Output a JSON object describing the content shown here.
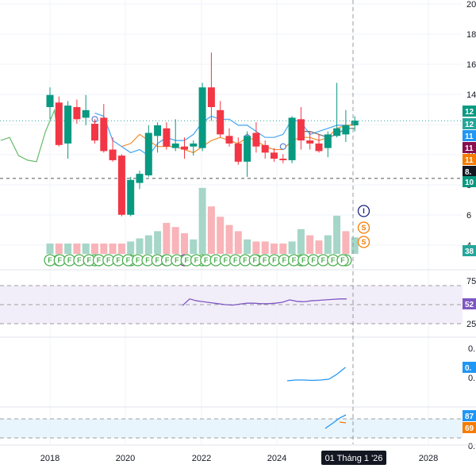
{
  "chart_data": {
    "type": "candlestick",
    "x_axis": {
      "ticks": [
        "2018",
        "2020",
        "2022",
        "2024",
        "2026",
        "2028"
      ],
      "crosshair_label": "01 Tháng 1 '26"
    },
    "price_axis": {
      "ticks": [
        "20",
        "18",
        "16",
        "14",
        "12",
        "10",
        "8",
        "6",
        "4"
      ],
      "ylim": [
        3,
        20
      ]
    },
    "price_badges": [
      {
        "text": "12",
        "color": "#089981"
      },
      {
        "text": "12",
        "color": "#26a69a"
      },
      {
        "text": "11",
        "color": "#2196f3"
      },
      {
        "text": "11",
        "color": "#880e4f"
      },
      {
        "text": "11",
        "color": "#f57c00"
      },
      {
        "text": "8.",
        "color": "#131722"
      },
      {
        "text": "10",
        "color": "#089981"
      },
      {
        "text": "38",
        "color": "#26a69a"
      }
    ],
    "candles": [
      {
        "o": 13.2,
        "h": 14.5,
        "l": 12.4,
        "c": 14.0
      },
      {
        "o": 13.5,
        "h": 13.9,
        "l": 10.6,
        "c": 10.7
      },
      {
        "o": 10.8,
        "h": 13.6,
        "l": 9.8,
        "c": 13.3
      },
      {
        "o": 13.2,
        "h": 13.7,
        "l": 12.1,
        "c": 12.4
      },
      {
        "o": 12.5,
        "h": 14.0,
        "l": 12.0,
        "c": 13.0
      },
      {
        "o": 12.1,
        "h": 12.4,
        "l": 10.8,
        "c": 11.0
      },
      {
        "o": 12.5,
        "h": 13.4,
        "l": 10.2,
        "c": 10.3
      },
      {
        "o": 10.4,
        "h": 11.2,
        "l": 9.6,
        "c": 9.7
      },
      {
        "o": 10.0,
        "h": 10.1,
        "l": 6.0,
        "c": 6.1
      },
      {
        "o": 6.1,
        "h": 8.6,
        "l": 6.0,
        "c": 8.4
      },
      {
        "o": 8.2,
        "h": 9.0,
        "l": 7.8,
        "c": 8.8
      },
      {
        "o": 8.7,
        "h": 12.0,
        "l": 8.6,
        "c": 11.5
      },
      {
        "o": 11.3,
        "h": 12.2,
        "l": 10.2,
        "c": 12.0
      },
      {
        "o": 11.8,
        "h": 12.2,
        "l": 10.4,
        "c": 10.6
      },
      {
        "o": 10.5,
        "h": 12.4,
        "l": 10.3,
        "c": 10.8
      },
      {
        "o": 10.6,
        "h": 11.2,
        "l": 9.8,
        "c": 10.4
      },
      {
        "o": 10.6,
        "h": 11.0,
        "l": 10.0,
        "c": 10.8
      },
      {
        "o": 10.5,
        "h": 14.8,
        "l": 10.3,
        "c": 14.5
      },
      {
        "o": 14.5,
        "h": 16.8,
        "l": 12.3,
        "c": 13.2
      },
      {
        "o": 13.0,
        "h": 13.6,
        "l": 11.2,
        "c": 11.4
      },
      {
        "o": 11.3,
        "h": 11.8,
        "l": 10.6,
        "c": 10.8
      },
      {
        "o": 10.8,
        "h": 11.2,
        "l": 9.4,
        "c": 9.6
      },
      {
        "o": 9.6,
        "h": 11.6,
        "l": 8.6,
        "c": 11.3
      },
      {
        "o": 11.5,
        "h": 12.2,
        "l": 10.2,
        "c": 10.6
      },
      {
        "o": 10.7,
        "h": 11.0,
        "l": 9.8,
        "c": 10.2
      },
      {
        "o": 10.2,
        "h": 10.5,
        "l": 9.6,
        "c": 9.8
      },
      {
        "o": 9.8,
        "h": 10.1,
        "l": 9.5,
        "c": 9.7
      },
      {
        "o": 9.7,
        "h": 12.6,
        "l": 9.5,
        "c": 12.5
      },
      {
        "o": 12.4,
        "h": 13.2,
        "l": 10.4,
        "c": 11.0
      },
      {
        "o": 11.0,
        "h": 11.6,
        "l": 10.4,
        "c": 10.8
      },
      {
        "o": 10.8,
        "h": 11.4,
        "l": 10.2,
        "c": 10.3
      },
      {
        "o": 10.5,
        "h": 11.6,
        "l": 9.9,
        "c": 11.4
      },
      {
        "o": 11.3,
        "h": 14.8,
        "l": 11.2,
        "c": 11.8
      },
      {
        "o": 11.4,
        "h": 13.0,
        "l": 10.9,
        "c": 12.0
      },
      {
        "o": 12.0,
        "h": 12.6,
        "l": 11.6,
        "c": 12.3
      }
    ],
    "volume": [
      {
        "v": 1,
        "up": true
      },
      {
        "v": 1,
        "up": false
      },
      {
        "v": 1,
        "up": true
      },
      {
        "v": 1,
        "up": false
      },
      {
        "v": 1,
        "up": true
      },
      {
        "v": 1,
        "up": false
      },
      {
        "v": 1,
        "up": false
      },
      {
        "v": 1,
        "up": false
      },
      {
        "v": 1,
        "up": false
      },
      {
        "v": 1.2,
        "up": true
      },
      {
        "v": 1.5,
        "up": true
      },
      {
        "v": 1.8,
        "up": true
      },
      {
        "v": 2.2,
        "up": true
      },
      {
        "v": 3.0,
        "up": false
      },
      {
        "v": 2.6,
        "up": false
      },
      {
        "v": 2.0,
        "up": false
      },
      {
        "v": 1.4,
        "up": true
      },
      {
        "v": 6.4,
        "up": true
      },
      {
        "v": 4.6,
        "up": false
      },
      {
        "v": 3.6,
        "up": false
      },
      {
        "v": 2.8,
        "up": false
      },
      {
        "v": 2.2,
        "up": false
      },
      {
        "v": 1.4,
        "up": true
      },
      {
        "v": 1.2,
        "up": false
      },
      {
        "v": 1.2,
        "up": false
      },
      {
        "v": 1.0,
        "up": false
      },
      {
        "v": 1.0,
        "up": false
      },
      {
        "v": 1.2,
        "up": true
      },
      {
        "v": 2.4,
        "up": true
      },
      {
        "v": 1.8,
        "up": false
      },
      {
        "v": 1.3,
        "up": false
      },
      {
        "v": 1.8,
        "up": true
      },
      {
        "v": 3.7,
        "up": true
      },
      {
        "v": 2.2,
        "up": false
      },
      {
        "v": 1.6,
        "up": true
      }
    ],
    "event_markers": [
      {
        "letter": "F",
        "candle": 1,
        "row": 1,
        "color": "#4caf50"
      },
      {
        "letter": "F",
        "candle": 5,
        "row": 1,
        "color": "#4caf50"
      },
      {
        "letter": "F",
        "candle": 9,
        "row": 1,
        "color": "#4caf50"
      },
      {
        "letter": "D",
        "candle": 12,
        "row": 1,
        "color": "#9c27b0"
      },
      {
        "letter": "F",
        "candle": 13,
        "row": 1,
        "color": "#4caf50"
      },
      {
        "letter": "D",
        "candle": 15,
        "row": 1,
        "color": "#9c27b0"
      },
      {
        "letter": "F",
        "candle": 17,
        "row": 1,
        "color": "#4caf50"
      },
      {
        "letter": "F",
        "candle": 23,
        "row": 1,
        "color": "#4caf50"
      },
      {
        "letter": "F",
        "candle": 28,
        "row": 1,
        "color": "#4caf50"
      },
      {
        "letter": "F",
        "candle": 33,
        "row": 1,
        "color": "#4caf50"
      },
      {
        "letter": "I",
        "candle": 35,
        "row": 4,
        "color": "#1a237e"
      },
      {
        "letter": "S",
        "candle": 35,
        "row": 3,
        "color": "#f57c00"
      },
      {
        "letter": "S",
        "candle": 35,
        "row": 2,
        "color": "#f57c00"
      }
    ],
    "f_row_count": 31,
    "rsi": {
      "axis_ticks": [
        "75",
        "25"
      ],
      "badge": "52",
      "badge_color": "#7e57c2",
      "values": [
        48,
        62,
        58,
        56,
        54,
        52,
        50,
        49,
        51,
        53,
        53,
        52,
        52,
        53,
        55,
        60,
        57,
        56,
        58,
        59,
        60,
        61,
        62,
        62
      ]
    },
    "pane3": {
      "axis_ticks": [
        "0.",
        "0."
      ],
      "badge": "0.",
      "badge_color": "#2196f3",
      "values": [
        0.38,
        0.4,
        0.4,
        0.39,
        0.4,
        0.42,
        0.55,
        0.72
      ]
    },
    "pane4": {
      "axis_ticks": [
        "0."
      ],
      "badges": [
        {
          "text": "87",
          "color": "#2196f3"
        },
        {
          "text": "69",
          "color": "#f57c00"
        }
      ]
    }
  }
}
